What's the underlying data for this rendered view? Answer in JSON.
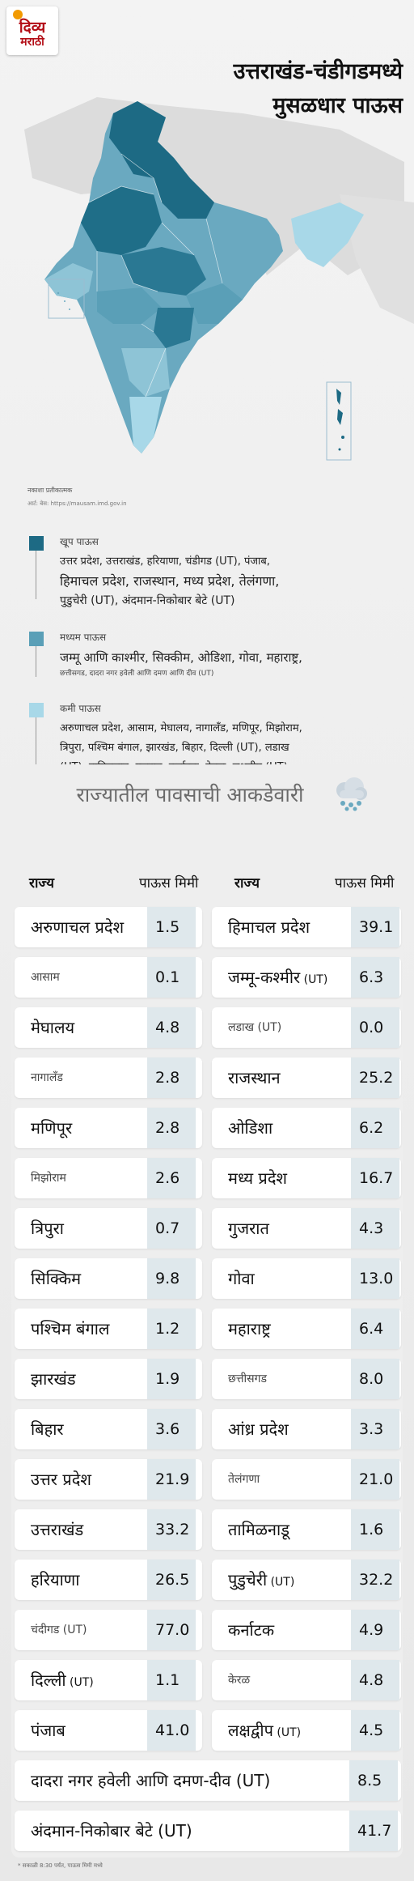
{
  "brand": {
    "line1": "दिव्य",
    "line2": "मराठी"
  },
  "header": {
    "title_line1": "उत्तराखंड-चंडीगडमध्ये",
    "title_line2": "मुसळधार पाऊस"
  },
  "map": {
    "note": "नकाशा प्रतीकात्मक",
    "source": "आर्ट: बेस: https://mausam.imd.gov.in"
  },
  "legend": {
    "heavy": {
      "caption": "खूप पाऊस",
      "color": "#1d6a84",
      "text_line1": "उत्तर प्रदेश, उत्तराखंड, हरियाणा, चंडीगड (UT), पंजाब,",
      "text_line2": "हिमाचल प्रदेश, राजस्थान, मध्य प्रदेश, तेलंगणा,",
      "text_line3": "पुडुचेरी (UT), अंदमान-निकोबार बेटे (UT)"
    },
    "moderate": {
      "caption": "मध्यम पाऊस",
      "color": "#5a9fb7",
      "text_line1": "जम्मू आणि काश्मीर, सिक्कीम, ओडिशा, गोवा, महाराष्ट्र,",
      "text_line2": "छत्तीसगड, दादरा नगर हवेली आणि दमण आणि दीव (UT)"
    },
    "light": {
      "caption": "कमी पाऊस",
      "color": "#a8d8e8",
      "text_line1": "अरुणाचल प्रदेश, आसाम, मेघालय, नागालँड, मणिपूर, मिझोराम,",
      "text_line2": "त्रिपुरा, पश्चिम बंगाल, झारखंड, बिहार, दिल्ली (UT), लडाख",
      "text_line3": "(UT), तामिळनाडू, गुजरात, कर्नाटक, केरळ, लक्षद्वीप (UT)"
    }
  },
  "table": {
    "title": "राज्यातील पावसाची आकडेवारी",
    "col_state": "राज्य",
    "col_rain": "पाऊस मिमी",
    "left": [
      {
        "name": "अरुणाचल प्रदेश",
        "value": "1.5"
      },
      {
        "name": "आसाम",
        "value": "0.1",
        "small": true
      },
      {
        "name": "मेघालय",
        "value": "4.8"
      },
      {
        "name": "नागालँड",
        "value": "2.8",
        "small": true
      },
      {
        "name": "मणिपूर",
        "value": "2.8"
      },
      {
        "name": "मिझोराम",
        "value": "2.6",
        "small": true
      },
      {
        "name": "त्रिपुरा",
        "value": "0.7"
      },
      {
        "name": "सिक्किम",
        "value": "9.8"
      },
      {
        "name": "पश्चिम बंगाल",
        "value": "1.2"
      },
      {
        "name": "झारखंड",
        "value": "1.9"
      },
      {
        "name": "बिहार",
        "value": "3.6"
      },
      {
        "name": "उत्तर प्रदेश",
        "value": "21.9"
      },
      {
        "name": "उत्तराखंड",
        "value": "33.2"
      },
      {
        "name": "हरियाणा",
        "value": "26.5"
      },
      {
        "name": "चंदीगड (UT)",
        "value": "77.0",
        "small": true
      },
      {
        "name": "दिल्ली",
        "ut": "(UT)",
        "value": "1.1"
      },
      {
        "name": "पंजाब",
        "value": "41.0"
      }
    ],
    "right": [
      {
        "name": "हिमाचल प्रदेश",
        "value": "39.1"
      },
      {
        "name": "जम्मू-कश्मीर",
        "ut": "(UT)",
        "value": "6.3"
      },
      {
        "name": "लडाख (UT)",
        "value": "0.0",
        "small": true
      },
      {
        "name": "राजस्थान",
        "value": "25.2"
      },
      {
        "name": "ओडिशा",
        "value": "6.2"
      },
      {
        "name": "मध्य प्रदेश",
        "value": "16.7"
      },
      {
        "name": "गुजरात",
        "value": "4.3"
      },
      {
        "name": "गोवा",
        "value": "13.0"
      },
      {
        "name": "महाराष्ट्र",
        "value": "6.4"
      },
      {
        "name": "छत्तीसगड",
        "value": "8.0",
        "small": true
      },
      {
        "name": "आंध्र प्रदेश",
        "value": "3.3"
      },
      {
        "name": "तेलंगणा",
        "value": "21.0",
        "small": true
      },
      {
        "name": "तामिळनाडू",
        "value": "1.6"
      },
      {
        "name": "पुडुचेरी",
        "ut": "(UT)",
        "value": "32.2"
      },
      {
        "name": "कर्नाटक",
        "value": "4.9"
      },
      {
        "name": "केरळ",
        "value": "4.8",
        "small": true
      },
      {
        "name": "लक्षद्वीप",
        "ut": "(UT)",
        "value": "4.5"
      }
    ],
    "bottom": [
      {
        "name": "दादरा नगर हवेली आणि दमण-दीव (UT)",
        "value": "8.5"
      },
      {
        "name": "अंदमान-निकोबार बेटे (UT)",
        "value": "41.7"
      }
    ]
  },
  "footnote": "* सकाळी 8:30 पर्यंत, पाऊस मिमी मध्ये"
}
